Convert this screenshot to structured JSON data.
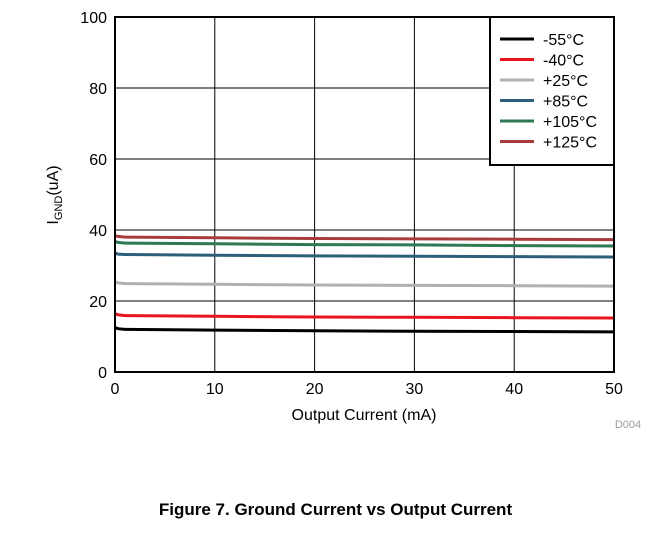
{
  "figure": {
    "caption": "Figure 7. Ground Current vs Output Current",
    "code": "D004"
  },
  "chart_data": {
    "type": "line",
    "xlabel": "Output Current (mA)",
    "ylabel_main": "I",
    "ylabel_sub": "GND",
    "ylabel_unit": "(uA)",
    "xlim": [
      0,
      50
    ],
    "ylim": [
      0,
      100
    ],
    "xticks": [
      "0",
      "10",
      "20",
      "30",
      "40",
      "50"
    ],
    "yticks": [
      "0",
      "20",
      "40",
      "60",
      "80",
      "100"
    ],
    "grid": true,
    "legend_position": "top-right",
    "series": [
      {
        "name": "-55°C",
        "color": "#000000",
        "x": [
          0,
          0.3,
          1,
          10,
          20,
          30,
          40,
          50
        ],
        "y": [
          12.6,
          12.2,
          12.0,
          11.8,
          11.6,
          11.5,
          11.4,
          11.3
        ]
      },
      {
        "name": "-40°C",
        "color": "#e8141c",
        "x": [
          0,
          0.3,
          1,
          10,
          20,
          30,
          40,
          50
        ],
        "y": [
          16.4,
          16.1,
          15.9,
          15.7,
          15.5,
          15.4,
          15.3,
          15.2
        ]
      },
      {
        "name": "+25°C",
        "color": "#b0b0b0",
        "x": [
          0,
          0.3,
          1,
          10,
          20,
          30,
          40,
          50
        ],
        "y": [
          25.4,
          25.1,
          24.9,
          24.7,
          24.5,
          24.4,
          24.3,
          24.2
        ]
      },
      {
        "name": "+85°C",
        "color": "#2e5f7a",
        "x": [
          0,
          0.3,
          1,
          10,
          20,
          30,
          40,
          50
        ],
        "y": [
          33.5,
          33.2,
          33.1,
          32.9,
          32.7,
          32.6,
          32.5,
          32.4
        ]
      },
      {
        "name": "+105°C",
        "color": "#2e7a55",
        "x": [
          0,
          0.3,
          1,
          10,
          20,
          30,
          40,
          50
        ],
        "y": [
          36.8,
          36.5,
          36.3,
          36.1,
          35.9,
          35.8,
          35.6,
          35.5
        ]
      },
      {
        "name": "+125°C",
        "color": "#a83c3c",
        "x": [
          0,
          0.3,
          1,
          10,
          20,
          30,
          40,
          50
        ],
        "y": [
          38.4,
          38.2,
          38.0,
          37.8,
          37.6,
          37.5,
          37.4,
          37.3
        ]
      }
    ]
  }
}
